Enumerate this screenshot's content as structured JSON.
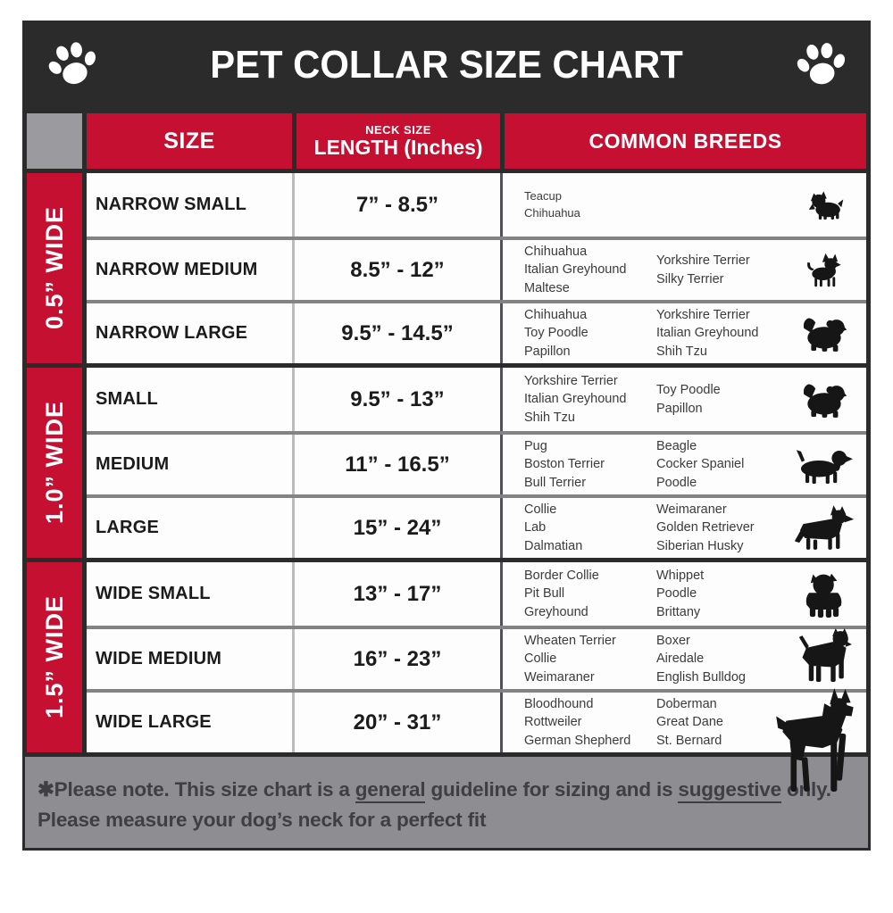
{
  "page": {
    "title": "PET COLLAR SIZE CHART"
  },
  "colors": {
    "accent_red": "#c51031",
    "header_dark": "#2b2b2c",
    "corner_gray": "#9b9a9e",
    "footer_gray": "#8e8d91",
    "row_white": "#fdfdfd",
    "silhouette_black": "#161616"
  },
  "table": {
    "headers": {
      "size": "SIZE",
      "neck_size_small": "NECK SIZE",
      "neck_size_large": "LENGTH (Inches)",
      "breeds": "COMMON BREEDS"
    },
    "groups": [
      {
        "width_label": "0.5” WIDE",
        "rows": [
          {
            "size": "NARROW SMALL",
            "length": "7” - 8.5”",
            "small_text": true,
            "breeds_col1": [
              "Teacup",
              "Chihuahua"
            ],
            "breeds_col2": [],
            "icon": "yorkie"
          },
          {
            "size": "NARROW MEDIUM",
            "length": "8.5” - 12”",
            "breeds_col1": [
              "Chihuahua",
              "Italian Greyhound",
              "Maltese"
            ],
            "breeds_col2": [
              "Yorkshire Terrier",
              "Silky Terrier"
            ],
            "icon": "chihuahua"
          },
          {
            "size": "NARROW LARGE",
            "length": "9.5” - 14.5”",
            "breeds_col1": [
              "Chihuahua",
              "Toy Poodle",
              "Papillon"
            ],
            "breeds_col2": [
              "Yorkshire Terrier",
              "Italian Greyhound",
              "Shih Tzu"
            ],
            "icon": "pekingese"
          }
        ]
      },
      {
        "width_label": "1.0” WIDE",
        "rows": [
          {
            "size": "SMALL",
            "length": "9.5” - 13”",
            "breeds_col1": [
              "Yorkshire Terrier",
              "Italian Greyhound",
              "Shih Tzu"
            ],
            "breeds_col2": [
              "Toy Poodle",
              "Papillon"
            ],
            "icon": "pekingese"
          },
          {
            "size": "MEDIUM",
            "length": "11” - 16.5”",
            "breeds_col1": [
              "Pug",
              "Boston Terrier",
              "Bull Terrier"
            ],
            "breeds_col2": [
              "Beagle",
              "Cocker Spaniel",
              "Poodle"
            ],
            "icon": "beagle"
          },
          {
            "size": "LARGE",
            "length": "15” - 24”",
            "breeds_col1": [
              "Collie",
              "Lab",
              "Dalmatian"
            ],
            "breeds_col2": [
              "Weimaraner",
              "Golden Retriever",
              "Siberian Husky"
            ],
            "icon": "shepherd"
          }
        ]
      },
      {
        "width_label": "1.5” WIDE",
        "rows": [
          {
            "size": "WIDE SMALL",
            "length": "13” - 17”",
            "breeds_col1": [
              "Border Collie",
              "Pit Bull",
              "Greyhound"
            ],
            "breeds_col2": [
              "Whippet",
              "Poodle",
              "Brittany"
            ],
            "icon": "bulldog"
          },
          {
            "size": "WIDE MEDIUM",
            "length": "16” - 23”",
            "breeds_col1": [
              "Wheaten Terrier",
              "Collie",
              "Weimaraner"
            ],
            "breeds_col2": [
              "Boxer",
              "Airedale",
              "English Bulldog"
            ],
            "icon": "pitbull"
          },
          {
            "size": "WIDE LARGE",
            "length": "20” - 31”",
            "breeds_col1": [
              "Bloodhound",
              "Rottweiler",
              "German Shepherd"
            ],
            "breeds_col2": [
              "Doberman",
              "Great Dane",
              "St. Bernard"
            ],
            "icon": "doberman"
          }
        ]
      }
    ]
  },
  "footer": {
    "line1_segments": [
      {
        "text": "✱Please note. This size chart is a "
      },
      {
        "text": "general",
        "underline": true
      },
      {
        "text": " guideline for sizing and is "
      },
      {
        "text": "suggestive",
        "underline": true
      },
      {
        "text": " only."
      }
    ],
    "line2": "Please measure your dog’s neck for a perfect fit"
  }
}
